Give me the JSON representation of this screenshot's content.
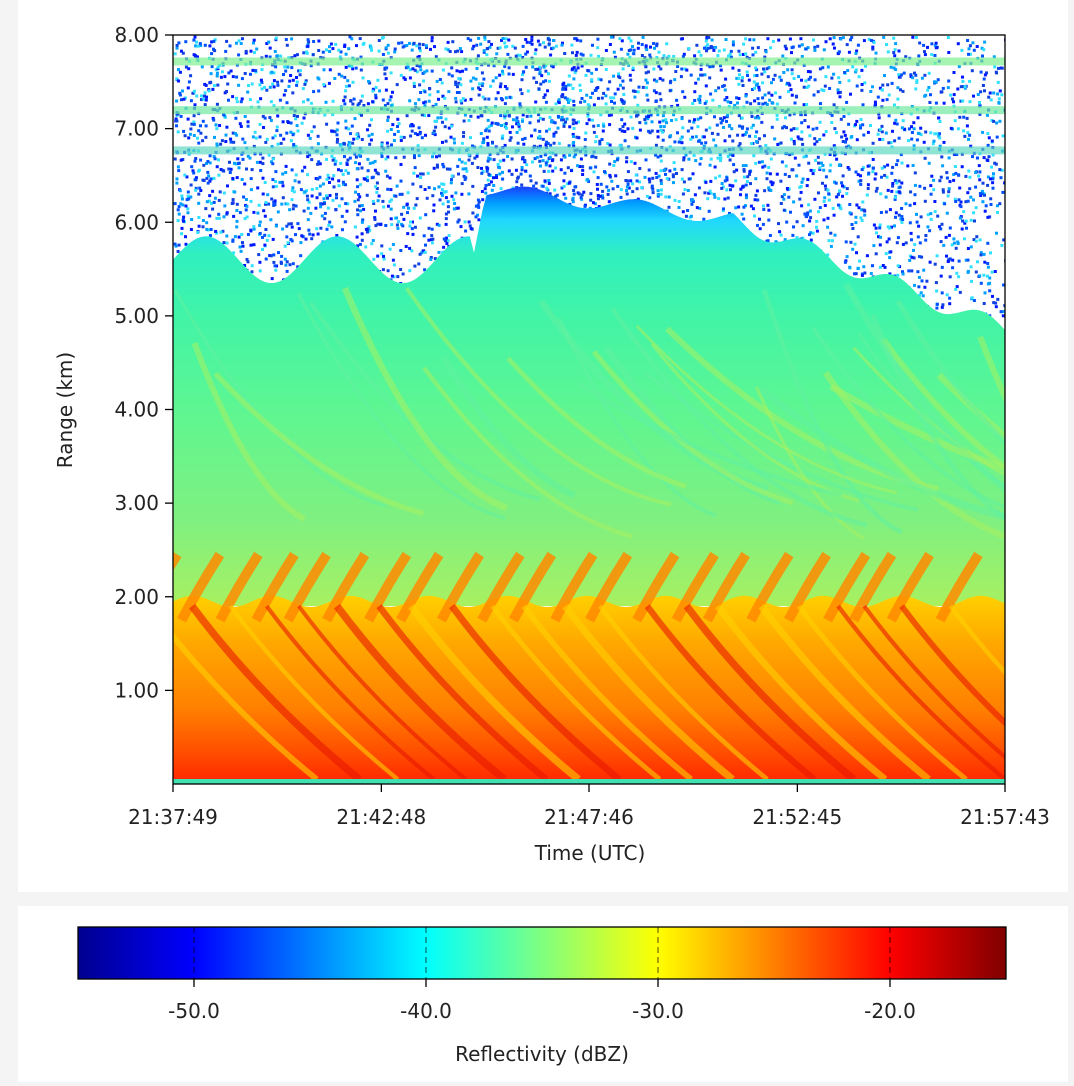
{
  "chart_data": [
    {
      "type": "heatmap",
      "title": "",
      "xlabel": "Time (UTC)",
      "ylabel": "Range (km)",
      "x_tick_labels": [
        "21:37:49",
        "21:42:48",
        "21:47:46",
        "21:52:45",
        "21:57:43"
      ],
      "x_ticks_seconds_since_start": [
        0,
        299,
        597,
        896,
        1194
      ],
      "xlim": [
        "21:37:49",
        "21:57:43"
      ],
      "y_tick_labels": [
        "1.00",
        "2.00",
        "3.00",
        "4.00",
        "5.00",
        "6.00",
        "7.00",
        "8.00"
      ],
      "y_ticks": [
        1,
        2,
        3,
        4,
        5,
        6,
        7,
        8
      ],
      "ylim": [
        0.0,
        8.0
      ],
      "colormap": "jet",
      "grid": false,
      "features": [
        {
          "range_km": [
            0.0,
            1.9
          ],
          "reflectivity_dbz": [
            -25,
            -19
          ]
        },
        {
          "range_km": [
            1.9,
            2.5
          ],
          "reflectivity_dbz": [
            -30,
            -20
          ]
        },
        {
          "range_km": [
            2.5,
            5.6
          ],
          "reflectivity_dbz": [
            -40,
            -30
          ]
        },
        {
          "range_km": [
            5.6,
            8.0
          ],
          "reflectivity_dbz": [
            -52,
            -38
          ]
        }
      ]
    },
    {
      "type": "colorbar",
      "label": "Reflectivity (dBZ)",
      "range": [
        -55,
        -15
      ],
      "ticks": [
        -50,
        -40,
        -30,
        -20
      ],
      "tick_labels": [
        "-50.0",
        "-40.0",
        "-30.0",
        "-20.0"
      ],
      "colormap": "jet"
    }
  ]
}
